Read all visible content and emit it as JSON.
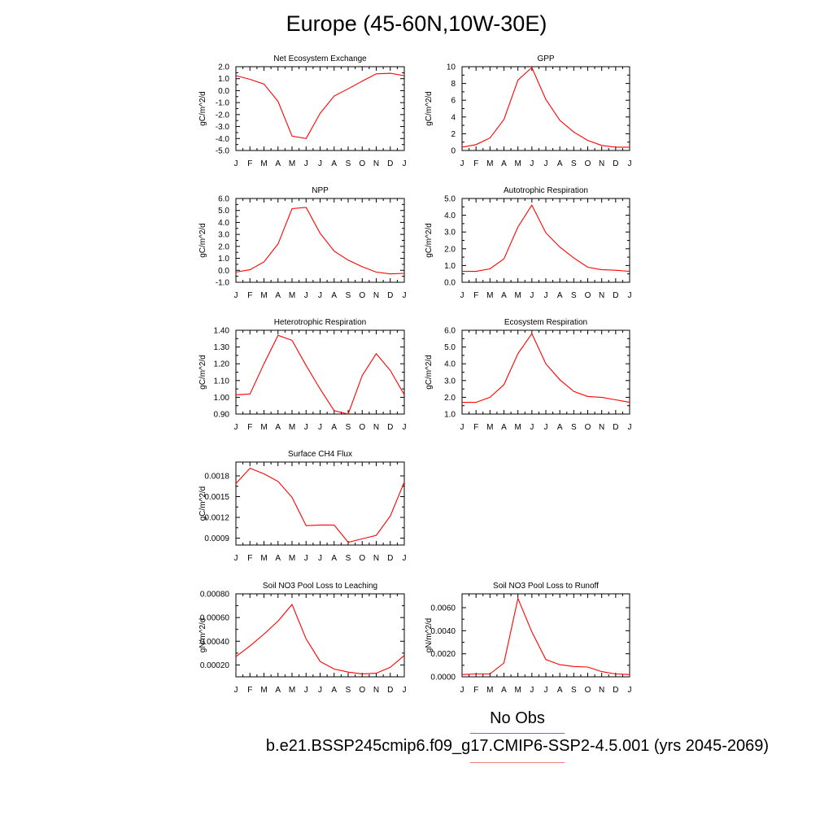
{
  "title": "Europe (45-60N,10W-30E)",
  "legend": {
    "obs_label": "No Obs",
    "obs_color": "#6b6bf0",
    "case_label": "b.e21.BSSP245cmip6.f09_g17.CMIP6-SSP2-4.5.001 (yrs 2045-2069)",
    "case_color": "#f08080"
  },
  "chart_data": [
    {
      "type": "line",
      "title": "Net Ecosystem Exchange",
      "ylabel": "gC/m^2/d",
      "categories": [
        "J",
        "F",
        "M",
        "A",
        "M",
        "J",
        "J",
        "A",
        "S",
        "O",
        "N",
        "D",
        "J"
      ],
      "ylim": [
        -5.0,
        2.0
      ],
      "yticks": [
        2.0,
        1.0,
        0.0,
        -1.0,
        -2.0,
        -3.0,
        -4.0,
        -5.0
      ],
      "ytick_labels": [
        "2.0",
        "1.0",
        "0.0",
        "-1.0",
        "-2.0",
        "-3.0",
        "-4.0",
        "-5.0"
      ],
      "series": [
        {
          "color": "#ff0000",
          "values": [
            1.25,
            0.95,
            0.55,
            -0.9,
            -3.8,
            -4.0,
            -1.9,
            -0.45,
            0.15,
            0.8,
            1.4,
            1.45,
            1.25
          ]
        }
      ]
    },
    {
      "type": "line",
      "title": "GPP",
      "ylabel": "gC/m^2/d",
      "categories": [
        "J",
        "F",
        "M",
        "A",
        "M",
        "J",
        "J",
        "A",
        "S",
        "O",
        "N",
        "D",
        "J"
      ],
      "ylim": [
        0,
        10
      ],
      "yticks": [
        10,
        8,
        6,
        4,
        2,
        0
      ],
      "ytick_labels": [
        "10",
        "8",
        "6",
        "4",
        "2",
        "0"
      ],
      "series": [
        {
          "color": "#ff0000",
          "values": [
            0.4,
            0.7,
            1.5,
            3.7,
            8.4,
            9.9,
            6.1,
            3.6,
            2.2,
            1.2,
            0.6,
            0.4,
            0.4
          ]
        }
      ]
    },
    {
      "type": "line",
      "title": "NPP",
      "ylabel": "gC/m^2/d",
      "categories": [
        "J",
        "F",
        "M",
        "A",
        "M",
        "J",
        "J",
        "A",
        "S",
        "O",
        "N",
        "D",
        "J"
      ],
      "ylim": [
        -1.0,
        6.0
      ],
      "yticks": [
        6.0,
        5.0,
        4.0,
        3.0,
        2.0,
        1.0,
        0.0,
        -1.0
      ],
      "ytick_labels": [
        "6.0",
        "5.0",
        "4.0",
        "3.0",
        "2.0",
        "1.0",
        "0.0",
        "-1.0"
      ],
      "series": [
        {
          "color": "#ff0000",
          "values": [
            -0.15,
            0.05,
            0.7,
            2.2,
            5.15,
            5.25,
            3.1,
            1.6,
            0.85,
            0.3,
            -0.15,
            -0.3,
            -0.25
          ]
        }
      ]
    },
    {
      "type": "line",
      "title": "Autotrophic Respiration",
      "ylabel": "gC/m^2/d",
      "categories": [
        "J",
        "F",
        "M",
        "A",
        "M",
        "J",
        "J",
        "A",
        "S",
        "O",
        "N",
        "D",
        "J"
      ],
      "ylim": [
        0.0,
        5.0
      ],
      "yticks": [
        5.0,
        4.0,
        3.0,
        2.0,
        1.0,
        0.0
      ],
      "ytick_labels": [
        "5.0",
        "4.0",
        "3.0",
        "2.0",
        "1.0",
        "0.0"
      ],
      "series": [
        {
          "color": "#ff0000",
          "values": [
            0.65,
            0.65,
            0.8,
            1.4,
            3.3,
            4.6,
            2.95,
            2.1,
            1.45,
            0.9,
            0.75,
            0.72,
            0.65
          ]
        }
      ]
    },
    {
      "type": "line",
      "title": "Heterotrophic Respiration",
      "ylabel": "gC/m^2/d",
      "categories": [
        "J",
        "F",
        "M",
        "A",
        "M",
        "J",
        "J",
        "A",
        "S",
        "O",
        "N",
        "D",
        "J"
      ],
      "ylim": [
        0.9,
        1.4
      ],
      "yticks": [
        1.4,
        1.3,
        1.2,
        1.1,
        1.0,
        0.9
      ],
      "ytick_labels": [
        "1.40",
        "1.30",
        "1.20",
        "1.10",
        "1.00",
        "0.90"
      ],
      "series": [
        {
          "color": "#ff0000",
          "values": [
            1.015,
            1.02,
            1.2,
            1.37,
            1.34,
            1.19,
            1.05,
            0.92,
            0.9,
            1.13,
            1.26,
            1.16,
            1.015
          ]
        }
      ]
    },
    {
      "type": "line",
      "title": "Ecosystem Respiration",
      "ylabel": "gC/m^2/d",
      "categories": [
        "J",
        "F",
        "M",
        "A",
        "M",
        "J",
        "J",
        "A",
        "S",
        "O",
        "N",
        "D",
        "J"
      ],
      "ylim": [
        1.0,
        6.0
      ],
      "yticks": [
        6.0,
        5.0,
        4.0,
        3.0,
        2.0,
        1.0
      ],
      "ytick_labels": [
        "6.0",
        "5.0",
        "4.0",
        "3.0",
        "2.0",
        "1.0"
      ],
      "series": [
        {
          "color": "#ff0000",
          "values": [
            1.7,
            1.7,
            2.0,
            2.75,
            4.6,
            5.8,
            4.0,
            3.05,
            2.35,
            2.05,
            2.0,
            1.85,
            1.7
          ]
        }
      ]
    },
    {
      "type": "line",
      "title": "Surface CH4 Flux",
      "ylabel": "gC/m^2/d",
      "categories": [
        "J",
        "F",
        "M",
        "A",
        "M",
        "J",
        "J",
        "A",
        "S",
        "O",
        "N",
        "D",
        "J"
      ],
      "ylim": [
        0.0008,
        0.002
      ],
      "yticks": [
        0.0018,
        0.0015,
        0.0012,
        0.0009
      ],
      "ytick_labels": [
        "0.0018",
        "0.0015",
        "0.0012",
        "0.0009"
      ],
      "series": [
        {
          "color": "#ff0000",
          "values": [
            0.00169,
            0.00191,
            0.00183,
            0.00172,
            0.00149,
            0.00108,
            0.00109,
            0.00109,
            0.00084,
            0.00089,
            0.00094,
            0.00122,
            0.00171
          ]
        }
      ]
    },
    {
      "type": "line",
      "title": "Soil NO3 Pool Loss to Leaching",
      "ylabel": "gN/m^2/d",
      "categories": [
        "J",
        "F",
        "M",
        "A",
        "M",
        "J",
        "J",
        "A",
        "S",
        "O",
        "N",
        "D",
        "J"
      ],
      "ylim": [
        0.0001,
        0.0008
      ],
      "yticks": [
        0.0008,
        0.0006,
        0.0004,
        0.0002
      ],
      "ytick_labels": [
        "0.00080",
        "0.00060",
        "0.00040",
        "0.00020"
      ],
      "series": [
        {
          "color": "#ff0000",
          "values": [
            0.00027,
            0.00036,
            0.00046,
            0.00057,
            0.00071,
            0.00042,
            0.00023,
            0.000165,
            0.00014,
            0.000125,
            0.00013,
            0.00018,
            0.00028
          ]
        }
      ]
    },
    {
      "type": "line",
      "title": "Soil NO3 Pool Loss to Runoff",
      "ylabel": "gN/m^2/d",
      "categories": [
        "J",
        "F",
        "M",
        "A",
        "M",
        "J",
        "J",
        "A",
        "S",
        "O",
        "N",
        "D",
        "J"
      ],
      "ylim": [
        0.0,
        0.0072
      ],
      "yticks": [
        0.006,
        0.004,
        0.002,
        0.0
      ],
      "ytick_labels": [
        "0.0060",
        "0.0040",
        "0.0020",
        "0.0000"
      ],
      "series": [
        {
          "color": "#ff0000",
          "values": [
            0.0002,
            0.00025,
            0.00025,
            0.0012,
            0.0068,
            0.0039,
            0.0015,
            0.00105,
            0.0009,
            0.00085,
            0.00045,
            0.00025,
            0.0002
          ]
        }
      ]
    }
  ]
}
